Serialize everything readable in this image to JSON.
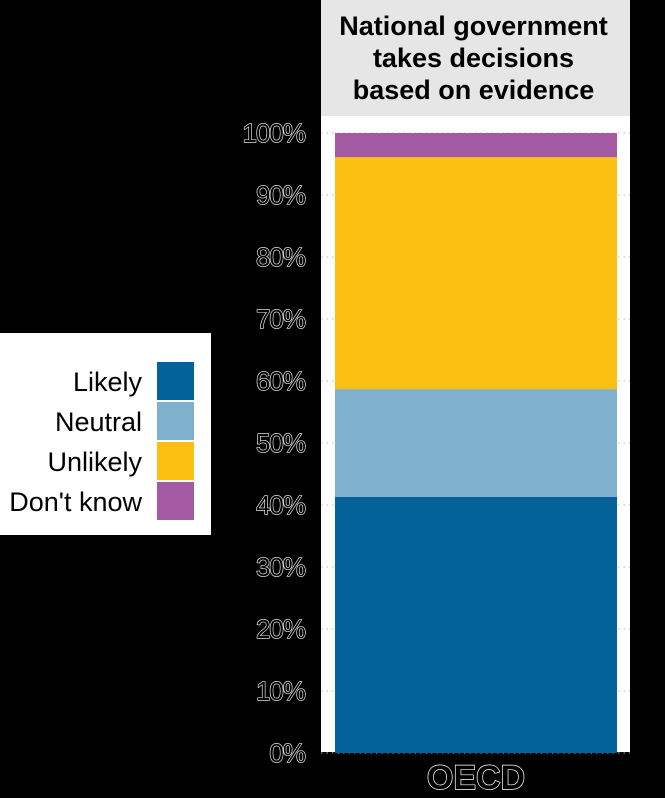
{
  "chart_data": {
    "type": "bar",
    "stacked": true,
    "panel_title": [
      "National government",
      "takes decisions",
      "based on evidence"
    ],
    "categories": [
      "OECD"
    ],
    "series": [
      {
        "name": "Likely",
        "values": [
          41.3
        ]
      },
      {
        "name": "Neutral",
        "values": [
          17.4
        ]
      },
      {
        "name": "Unlikely",
        "values": [
          37.4
        ]
      },
      {
        "name": "Don't know",
        "values": [
          3.9
        ]
      }
    ],
    "colors": {
      "Likely": "#04629b",
      "Neutral": "#7fb1cf",
      "Unlikely": "#fcc012",
      "Don't know": "#a35aa3",
      "panel_strip": "#e6e6e6"
    },
    "ylim": [
      0,
      100
    ],
    "yticks": [
      "0%",
      "10%",
      "20%",
      "30%",
      "40%",
      "50%",
      "60%",
      "70%",
      "80%",
      "90%",
      "100%"
    ],
    "grid": true,
    "legend_position": "left"
  }
}
